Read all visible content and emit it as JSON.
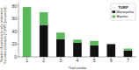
{
  "chart_data": {
    "type": "bar",
    "stacked": true,
    "categories": [
      "1",
      "2",
      "3",
      "4",
      "5",
      "6",
      "7"
    ],
    "series": [
      {
        "name": "Monopolar",
        "color": "#111111",
        "values": [
          0,
          50,
          28,
          22,
          18,
          20,
          10
        ]
      },
      {
        "name": "Bipolar",
        "color": "#5cb85c",
        "values": [
          78,
          20,
          10,
          5,
          7,
          0,
          3
        ]
      }
    ],
    "xlabel": "Trial centre",
    "ylabel": "Number of participants who underwent\nthe index procedure (TURP) (consented)",
    "ylim": [
      0,
      85
    ],
    "yticks": [
      0,
      20,
      40,
      60,
      80
    ],
    "legend": "upper right",
    "legend_title": "TURP"
  }
}
